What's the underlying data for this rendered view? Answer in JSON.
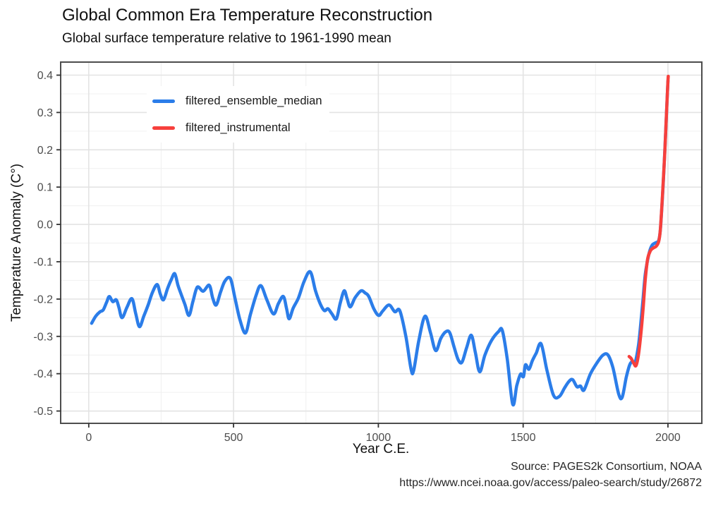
{
  "header": {
    "title": "Global Common Era Temperature Reconstruction",
    "subtitle": "Global surface temperature relative to 1961-1990 mean"
  },
  "caption": {
    "line1": "Source: PAGES2k Consortium, NOAA",
    "line2": "https://www.ncei.noaa.gov/access/paleo-search/study/26872"
  },
  "chart_data": {
    "type": "line",
    "title": "Global Common Era Temperature Reconstruction",
    "subtitle": "Global surface temperature relative to 1961-1990 mean",
    "xlabel": "Year C.E.",
    "ylabel": "Temperature Anomaly (C°)",
    "xlim": [
      -97,
      2117
    ],
    "ylim": [
      -0.533,
      0.435
    ],
    "x_major_ticks": [
      0,
      500,
      1000,
      1500,
      2000
    ],
    "x_minor_ticks": [
      250,
      750,
      1250,
      1750
    ],
    "y_major_ticks": [
      0.4,
      0.3,
      0.2,
      0.1,
      0.0,
      -0.1,
      -0.2,
      -0.3,
      -0.4,
      -0.5
    ],
    "y_minor_ticks": [
      0.35,
      0.25,
      0.15,
      0.05,
      -0.05,
      -0.15,
      -0.25,
      -0.35,
      -0.45
    ],
    "grid": true,
    "legend_position": "inside-top-left",
    "colors": {
      "grid_major": "#e3e3e3",
      "grid_minor": "#f0f0f0",
      "panel_border": "#4d4d4d",
      "tick_mark": "#333333",
      "tick_label": "#4d4d4d",
      "panel_bg": "#ffffff"
    },
    "series": [
      {
        "name": "filtered_ensemble_median",
        "color": "#2b7de9",
        "points": [
          [
            10,
            -0.265
          ],
          [
            24,
            -0.246
          ],
          [
            39,
            -0.234
          ],
          [
            50,
            -0.229
          ],
          [
            62,
            -0.208
          ],
          [
            71,
            -0.193
          ],
          [
            83,
            -0.207
          ],
          [
            95,
            -0.202
          ],
          [
            104,
            -0.222
          ],
          [
            115,
            -0.25
          ],
          [
            132,
            -0.222
          ],
          [
            149,
            -0.199
          ],
          [
            162,
            -0.238
          ],
          [
            175,
            -0.274
          ],
          [
            190,
            -0.246
          ],
          [
            205,
            -0.216
          ],
          [
            220,
            -0.182
          ],
          [
            236,
            -0.161
          ],
          [
            247,
            -0.186
          ],
          [
            258,
            -0.202
          ],
          [
            272,
            -0.172
          ],
          [
            285,
            -0.148
          ],
          [
            297,
            -0.132
          ],
          [
            308,
            -0.163
          ],
          [
            319,
            -0.187
          ],
          [
            332,
            -0.214
          ],
          [
            346,
            -0.244
          ],
          [
            360,
            -0.206
          ],
          [
            375,
            -0.168
          ],
          [
            395,
            -0.179
          ],
          [
            416,
            -0.163
          ],
          [
            428,
            -0.197
          ],
          [
            440,
            -0.216
          ],
          [
            455,
            -0.182
          ],
          [
            470,
            -0.152
          ],
          [
            489,
            -0.145
          ],
          [
            505,
            -0.198
          ],
          [
            522,
            -0.255
          ],
          [
            541,
            -0.291
          ],
          [
            558,
            -0.242
          ],
          [
            577,
            -0.192
          ],
          [
            594,
            -0.164
          ],
          [
            615,
            -0.202
          ],
          [
            638,
            -0.24
          ],
          [
            655,
            -0.212
          ],
          [
            672,
            -0.193
          ],
          [
            683,
            -0.225
          ],
          [
            692,
            -0.253
          ],
          [
            706,
            -0.224
          ],
          [
            724,
            -0.197
          ],
          [
            744,
            -0.152
          ],
          [
            765,
            -0.127
          ],
          [
            783,
            -0.178
          ],
          [
            800,
            -0.214
          ],
          [
            814,
            -0.231
          ],
          [
            826,
            -0.226
          ],
          [
            840,
            -0.24
          ],
          [
            855,
            -0.253
          ],
          [
            868,
            -0.212
          ],
          [
            882,
            -0.178
          ],
          [
            892,
            -0.199
          ],
          [
            903,
            -0.221
          ],
          [
            920,
            -0.196
          ],
          [
            940,
            -0.178
          ],
          [
            955,
            -0.184
          ],
          [
            967,
            -0.193
          ],
          [
            985,
            -0.227
          ],
          [
            1001,
            -0.244
          ],
          [
            1015,
            -0.232
          ],
          [
            1037,
            -0.216
          ],
          [
            1057,
            -0.234
          ],
          [
            1074,
            -0.231
          ],
          [
            1095,
            -0.3
          ],
          [
            1113,
            -0.388
          ],
          [
            1122,
            -0.391
          ],
          [
            1140,
            -0.31
          ],
          [
            1161,
            -0.246
          ],
          [
            1180,
            -0.29
          ],
          [
            1198,
            -0.338
          ],
          [
            1216,
            -0.305
          ],
          [
            1234,
            -0.287
          ],
          [
            1247,
            -0.291
          ],
          [
            1262,
            -0.33
          ],
          [
            1276,
            -0.363
          ],
          [
            1289,
            -0.369
          ],
          [
            1305,
            -0.33
          ],
          [
            1321,
            -0.297
          ],
          [
            1335,
            -0.343
          ],
          [
            1350,
            -0.395
          ],
          [
            1368,
            -0.35
          ],
          [
            1390,
            -0.312
          ],
          [
            1415,
            -0.287
          ],
          [
            1428,
            -0.284
          ],
          [
            1445,
            -0.36
          ],
          [
            1464,
            -0.482
          ],
          [
            1478,
            -0.432
          ],
          [
            1491,
            -0.401
          ],
          [
            1501,
            -0.408
          ],
          [
            1508,
            -0.376
          ],
          [
            1520,
            -0.388
          ],
          [
            1532,
            -0.365
          ],
          [
            1545,
            -0.345
          ],
          [
            1562,
            -0.32
          ],
          [
            1582,
            -0.39
          ],
          [
            1605,
            -0.458
          ],
          [
            1625,
            -0.461
          ],
          [
            1643,
            -0.438
          ],
          [
            1659,
            -0.42
          ],
          [
            1671,
            -0.416
          ],
          [
            1686,
            -0.435
          ],
          [
            1698,
            -0.433
          ],
          [
            1710,
            -0.444
          ],
          [
            1732,
            -0.401
          ],
          [
            1754,
            -0.372
          ],
          [
            1776,
            -0.35
          ],
          [
            1793,
            -0.35
          ],
          [
            1810,
            -0.384
          ],
          [
            1830,
            -0.455
          ],
          [
            1842,
            -0.463
          ],
          [
            1856,
            -0.41
          ],
          [
            1868,
            -0.376
          ],
          [
            1878,
            -0.367
          ],
          [
            1886,
            -0.372
          ],
          [
            1898,
            -0.325
          ],
          [
            1906,
            -0.266
          ],
          [
            1914,
            -0.199
          ],
          [
            1922,
            -0.132
          ],
          [
            1934,
            -0.08
          ],
          [
            1945,
            -0.056
          ],
          [
            1958,
            -0.049
          ],
          [
            1968,
            -0.043
          ],
          [
            1974,
            -0.012
          ],
          [
            1980,
            0.06
          ],
          [
            1986,
            0.145
          ],
          [
            1991,
            0.23
          ],
          [
            1996,
            0.315
          ],
          [
            2000,
            0.385
          ]
        ]
      },
      {
        "name": "filtered_instrumental",
        "color": "#f7403c",
        "points": [
          [
            1866,
            -0.354
          ],
          [
            1873,
            -0.359
          ],
          [
            1882,
            -0.372
          ],
          [
            1890,
            -0.378
          ],
          [
            1899,
            -0.345
          ],
          [
            1908,
            -0.282
          ],
          [
            1915,
            -0.218
          ],
          [
            1922,
            -0.146
          ],
          [
            1930,
            -0.092
          ],
          [
            1940,
            -0.07
          ],
          [
            1950,
            -0.063
          ],
          [
            1960,
            -0.058
          ],
          [
            1968,
            -0.046
          ],
          [
            1973,
            -0.02
          ],
          [
            1978,
            0.035
          ],
          [
            1983,
            0.105
          ],
          [
            1988,
            0.175
          ],
          [
            1992,
            0.245
          ],
          [
            1996,
            0.315
          ],
          [
            1999,
            0.37
          ],
          [
            2001,
            0.397
          ]
        ]
      }
    ]
  }
}
